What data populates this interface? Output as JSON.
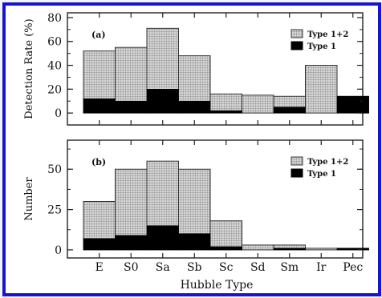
{
  "colors": {
    "frame_border": "#1414d2",
    "type12_fill": "#bdbdbd",
    "type1_fill": "#000000"
  },
  "chart_data": [
    {
      "type": "bar",
      "panel_label": "(a)",
      "ylabel": "Detection Rate (%)",
      "ylim": [
        -10,
        84
      ],
      "yticks": [
        0,
        20,
        40,
        60,
        80
      ],
      "categories": [
        "E",
        "S0",
        "Sa",
        "Sb",
        "Sc",
        "Sd",
        "Sm",
        "Ir",
        "Pec"
      ],
      "series": [
        {
          "name": "Type 1+2",
          "values": [
            52,
            55,
            71,
            48,
            16,
            15,
            14,
            40,
            14
          ]
        },
        {
          "name": "Type 1",
          "values": [
            12,
            10,
            20,
            10,
            2,
            0,
            5,
            0,
            14
          ]
        }
      ],
      "legend_position": "top-right"
    },
    {
      "type": "bar",
      "panel_label": "(b)",
      "ylabel": "Number",
      "ylim": [
        -5,
        68
      ],
      "yticks": [
        0,
        25,
        50
      ],
      "categories": [
        "E",
        "S0",
        "Sa",
        "Sb",
        "Sc",
        "Sd",
        "Sm",
        "Ir",
        "Pec"
      ],
      "series": [
        {
          "name": "Type 1+2",
          "values": [
            30,
            50,
            55,
            50,
            18,
            3,
            3,
            1,
            1
          ]
        },
        {
          "name": "Type 1",
          "values": [
            7,
            9,
            15,
            10,
            2,
            0,
            1,
            0,
            1
          ]
        }
      ],
      "legend_position": "top-right"
    }
  ],
  "xlabel": "Hubble Type",
  "xticklabels": [
    "E",
    "S0",
    "Sa",
    "Sb",
    "Sc",
    "Sd",
    "Sm",
    "Ir",
    "Pec"
  ]
}
